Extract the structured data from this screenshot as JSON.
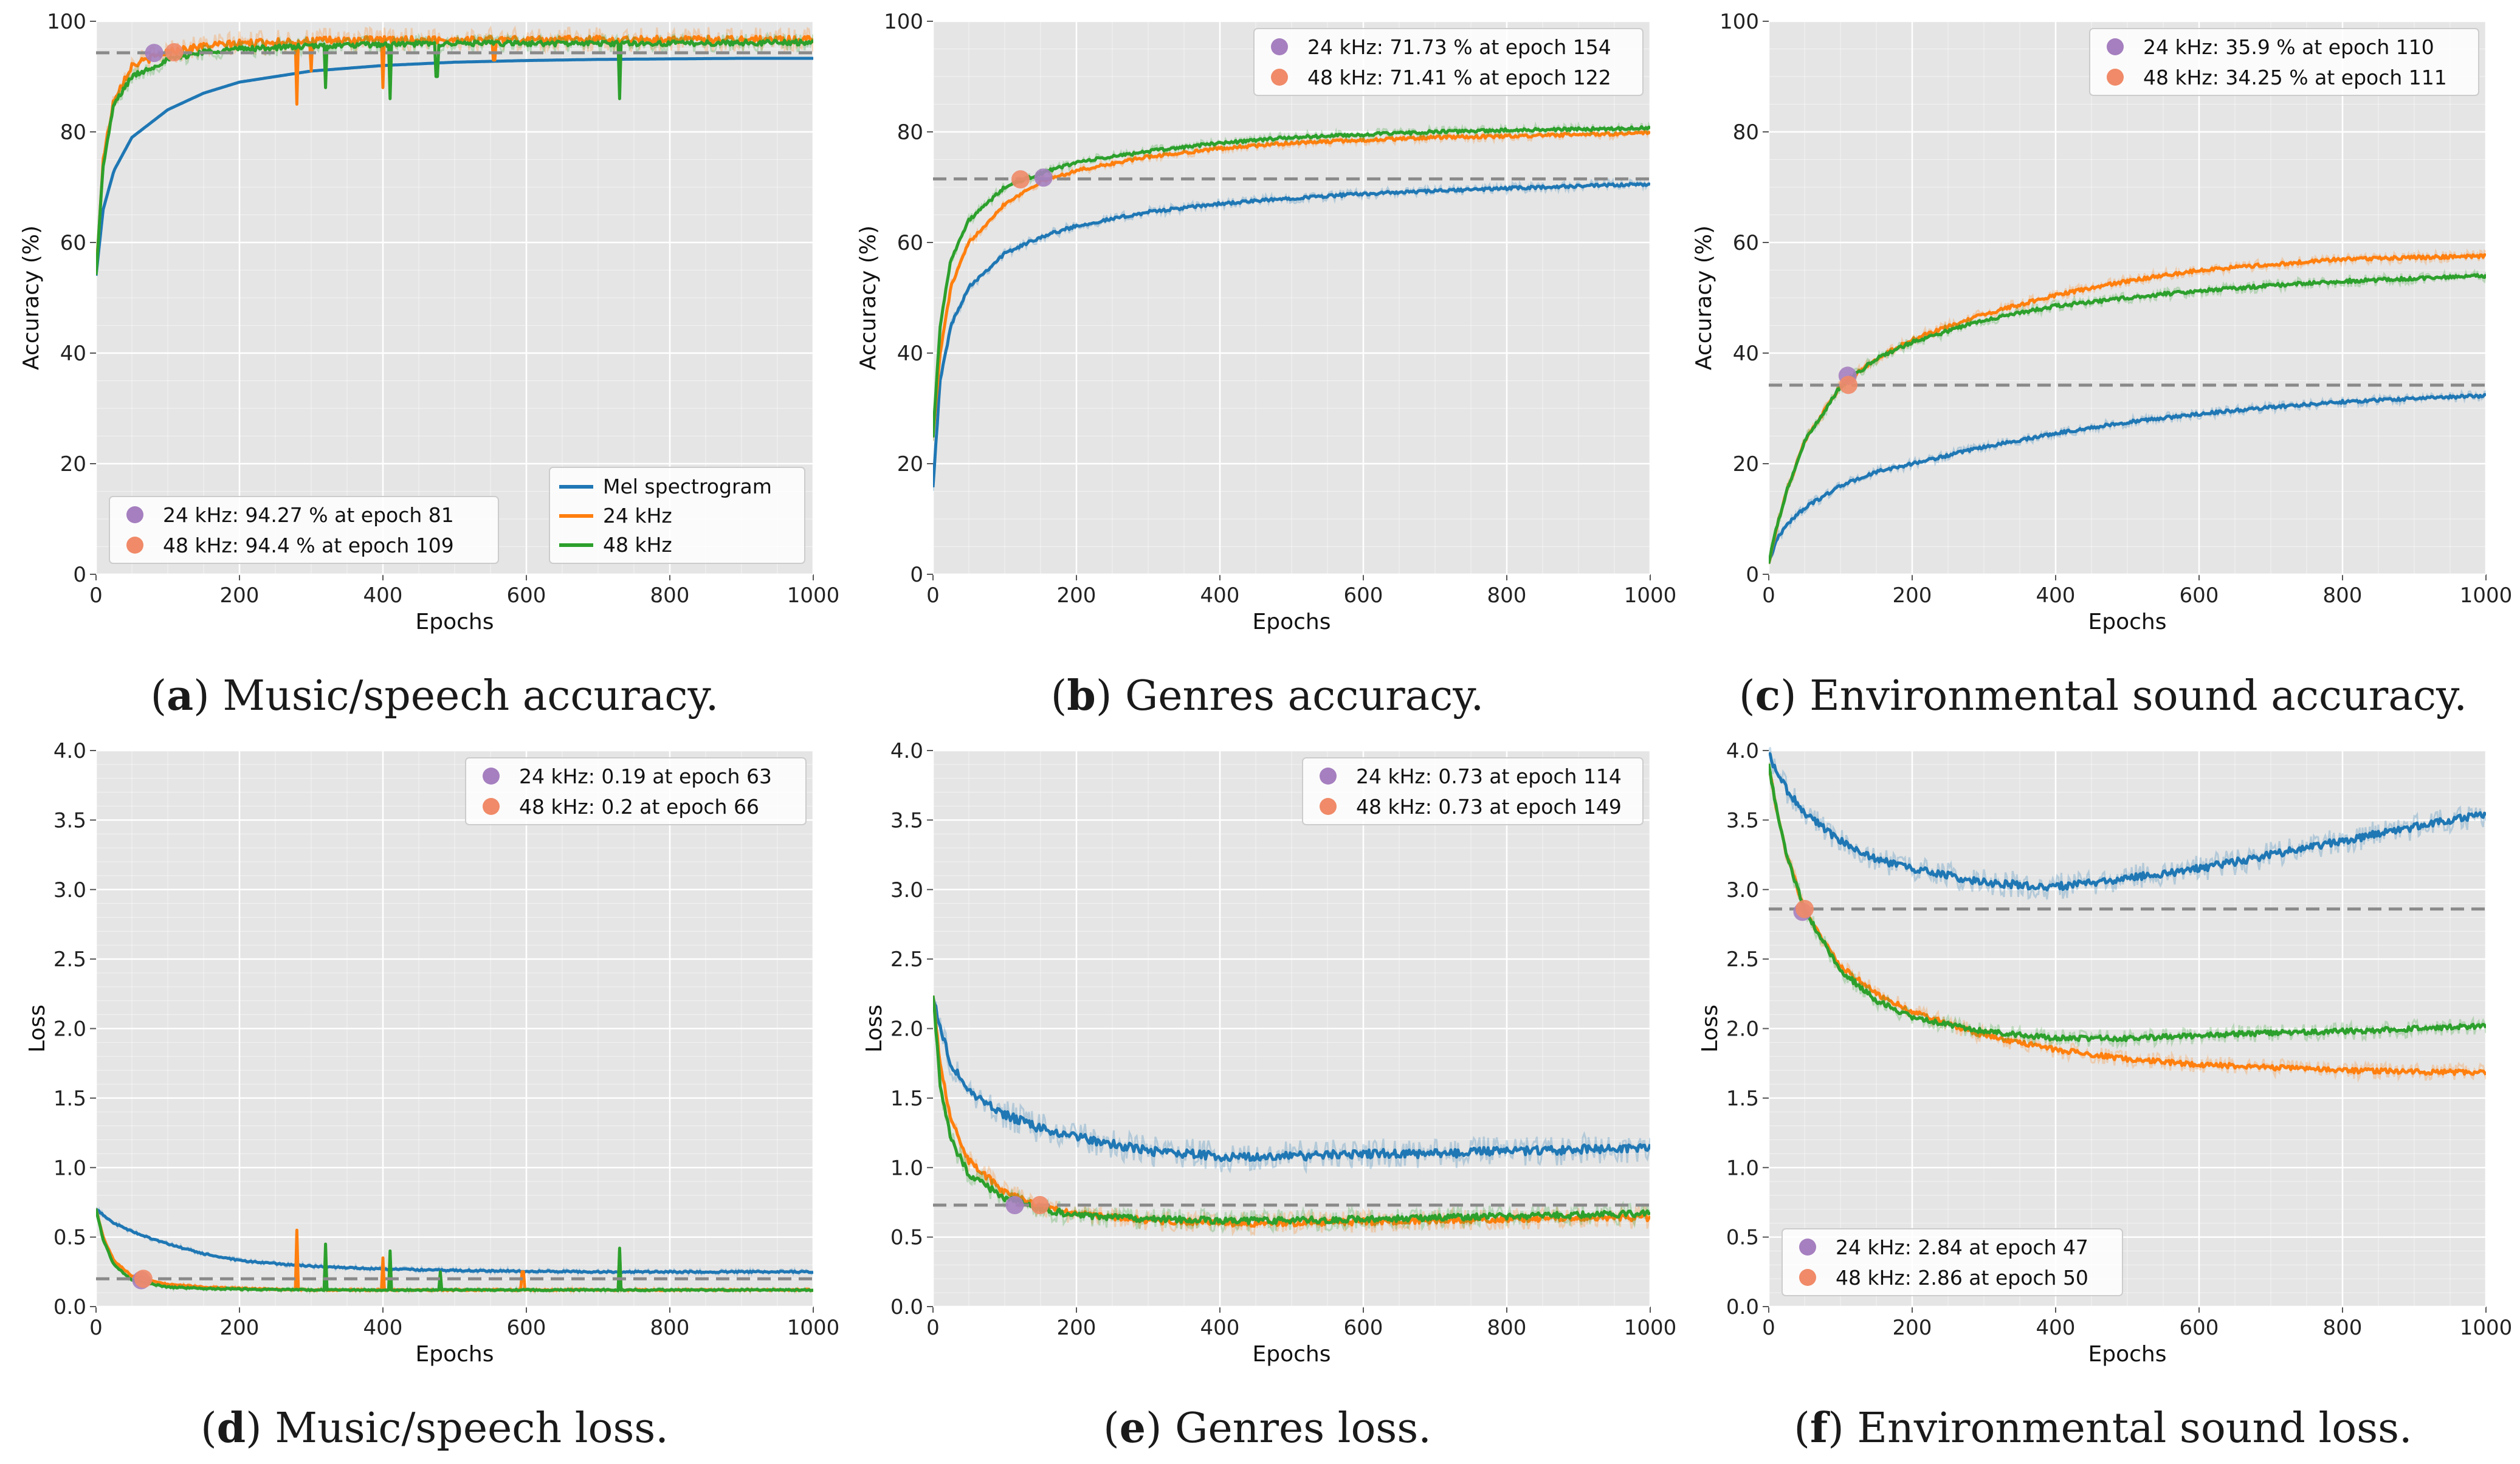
{
  "colors": {
    "mel": "#1f77b4",
    "k24": "#ff7f0e",
    "k48": "#2ca02c",
    "marker24": "#a57fbf",
    "marker48": "#f08a68",
    "marker_overlap": "#c85a5a",
    "background": "#e5e5e5",
    "grid": "#ffffff",
    "reference": "#8a8a8a"
  },
  "captions": [
    {
      "letter": "a",
      "text": "Music/speech accuracy."
    },
    {
      "letter": "b",
      "text": "Genres accuracy."
    },
    {
      "letter": "c",
      "text": "Environmental sound accuracy."
    },
    {
      "letter": "d",
      "text": "Music/speech loss."
    },
    {
      "letter": "e",
      "text": "Genres loss."
    },
    {
      "letter": "f",
      "text": "Environmental sound loss."
    }
  ],
  "chart_data": [
    {
      "id": "a",
      "type": "line",
      "metric": "accuracy",
      "xlabel": "Epochs",
      "ylabel": "Accuracy (%)",
      "xlim": [
        0,
        1000
      ],
      "ylim": [
        0,
        100
      ],
      "xticks": [
        0,
        200,
        400,
        600,
        800,
        1000
      ],
      "yticks": [
        0,
        20,
        40,
        60,
        80,
        100
      ],
      "grid": true,
      "reference_line": 94.3,
      "series_legend": {
        "position": "bottom-right",
        "items": [
          "Mel spectrogram",
          "24 kHz",
          "48 kHz"
        ]
      },
      "marker_legend": {
        "position": "bottom-left",
        "items": [
          "24 kHz: 94.27 % at epoch 81",
          "48 kHz: 94.4 % at epoch 109"
        ]
      },
      "markers": [
        {
          "x": 81,
          "y": 94.27
        },
        {
          "x": 109,
          "y": 94.4
        }
      ],
      "series": [
        {
          "name": "Mel spectrogram",
          "x": [
            0,
            10,
            25,
            50,
            100,
            150,
            200,
            300,
            400,
            500,
            600,
            700,
            800,
            900,
            1000
          ],
          "values": [
            54,
            66,
            73,
            79,
            84,
            87,
            89,
            91,
            92,
            92.6,
            92.9,
            93.1,
            93.2,
            93.3,
            93.3
          ]
        },
        {
          "name": "24 kHz",
          "x": [
            0,
            10,
            25,
            50,
            100,
            150,
            200,
            300,
            400,
            500,
            600,
            700,
            800,
            900,
            1000
          ],
          "values": [
            54,
            75,
            86,
            92,
            94.5,
            95.5,
            96,
            96.5,
            96.6,
            96.7,
            96.7,
            96.7,
            96.7,
            96.7,
            96.7
          ],
          "noise": 1.4,
          "spikes": [
            [
              280,
              85
            ],
            [
              300,
              91
            ],
            [
              400,
              88
            ],
            [
              555,
              93
            ],
            [
              730,
              88
            ]
          ]
        },
        {
          "name": "48 kHz",
          "x": [
            0,
            10,
            25,
            50,
            100,
            150,
            200,
            300,
            400,
            500,
            600,
            700,
            800,
            900,
            1000
          ],
          "values": [
            54,
            74,
            85,
            90,
            93,
            94.5,
            95,
            95.5,
            95.8,
            96,
            96,
            96,
            96,
            96.1,
            96.2
          ],
          "noise": 1.0,
          "spikes": [
            [
              320,
              88
            ],
            [
              410,
              86
            ],
            [
              475,
              90
            ],
            [
              730,
              86
            ]
          ]
        }
      ]
    },
    {
      "id": "b",
      "type": "line",
      "metric": "accuracy",
      "xlabel": "Epochs",
      "ylabel": "Accuracy (%)",
      "xlim": [
        0,
        1000
      ],
      "ylim": [
        0,
        100
      ],
      "xticks": [
        0,
        200,
        400,
        600,
        800,
        1000
      ],
      "yticks": [
        0,
        20,
        40,
        60,
        80,
        100
      ],
      "grid": true,
      "reference_line": 71.5,
      "marker_legend": {
        "position": "top-right",
        "items": [
          "24 kHz: 71.73 % at epoch 154",
          "48 kHz: 71.41 % at epoch 122"
        ]
      },
      "markers": [
        {
          "x": 154,
          "y": 71.73
        },
        {
          "x": 122,
          "y": 71.41
        }
      ],
      "series": [
        {
          "name": "Mel spectrogram",
          "x": [
            0,
            10,
            25,
            50,
            100,
            150,
            200,
            300,
            400,
            500,
            600,
            700,
            800,
            900,
            1000
          ],
          "values": [
            16,
            35,
            45,
            52,
            58,
            61,
            63,
            65.5,
            67,
            68,
            68.8,
            69.3,
            69.8,
            70.2,
            70.5
          ],
          "noise": 0.6
        },
        {
          "name": "24 kHz",
          "x": [
            0,
            10,
            25,
            50,
            100,
            150,
            200,
            300,
            400,
            500,
            600,
            700,
            800,
            900,
            1000
          ],
          "values": [
            25,
            40,
            52,
            60,
            67,
            71,
            73,
            75.5,
            77,
            78,
            78.5,
            79,
            79.2,
            79.5,
            79.8
          ],
          "noise": 0.6
        },
        {
          "name": "48 kHz",
          "x": [
            0,
            10,
            25,
            50,
            100,
            150,
            200,
            300,
            400,
            500,
            600,
            700,
            800,
            900,
            1000
          ],
          "values": [
            25,
            45,
            57,
            64,
            70,
            72.5,
            74.5,
            76.5,
            78,
            79,
            79.5,
            80,
            80.3,
            80.5,
            80.7
          ],
          "noise": 0.6
        }
      ]
    },
    {
      "id": "c",
      "type": "line",
      "metric": "accuracy",
      "xlabel": "Epochs",
      "ylabel": "Accuracy (%)",
      "xlim": [
        0,
        1000
      ],
      "ylim": [
        0,
        100
      ],
      "xticks": [
        0,
        200,
        400,
        600,
        800,
        1000
      ],
      "yticks": [
        0,
        20,
        40,
        60,
        80,
        100
      ],
      "grid": true,
      "reference_line": 34.2,
      "marker_legend": {
        "position": "top-right",
        "items": [
          "24 kHz: 35.9 % at epoch 110",
          "48 kHz: 34.25 % at epoch 111"
        ]
      },
      "markers": [
        {
          "x": 110,
          "y": 35.9
        },
        {
          "x": 111,
          "y": 34.25
        }
      ],
      "series": [
        {
          "name": "Mel spectrogram",
          "x": [
            0,
            10,
            25,
            50,
            100,
            150,
            200,
            300,
            400,
            500,
            600,
            700,
            800,
            900,
            1000
          ],
          "values": [
            2,
            6,
            9,
            12,
            16,
            18.5,
            20,
            23,
            25.5,
            27.5,
            29,
            30.2,
            31.2,
            31.8,
            32.3
          ],
          "noise": 0.6
        },
        {
          "name": "24 kHz",
          "x": [
            0,
            10,
            25,
            50,
            100,
            150,
            200,
            300,
            400,
            500,
            600,
            700,
            800,
            900,
            1000
          ],
          "values": [
            2,
            8,
            15,
            24,
            34,
            39,
            42.5,
            47,
            50.5,
            53,
            55,
            56,
            57,
            57.3,
            57.5
          ],
          "noise": 0.7
        },
        {
          "name": "48 kHz",
          "x": [
            0,
            10,
            25,
            50,
            100,
            150,
            200,
            300,
            400,
            500,
            600,
            700,
            800,
            900,
            1000
          ],
          "values": [
            2,
            8,
            15,
            24,
            34,
            39,
            42,
            46,
            48.5,
            50,
            51.3,
            52.2,
            53,
            53.5,
            54
          ],
          "noise": 0.7
        }
      ]
    },
    {
      "id": "d",
      "type": "line",
      "metric": "loss",
      "xlabel": "Epochs",
      "ylabel": "Loss",
      "xlim": [
        0,
        1000
      ],
      "ylim": [
        0,
        4
      ],
      "xticks": [
        0,
        200,
        400,
        600,
        800,
        1000
      ],
      "yticks": [
        0.0,
        0.5,
        1.0,
        1.5,
        2.0,
        2.5,
        3.0,
        3.5,
        4.0
      ],
      "grid": true,
      "reference_line": 0.2,
      "marker_legend": {
        "position": "top-right",
        "items": [
          "24 kHz: 0.19 at epoch 63",
          "48 kHz: 0.2 at epoch 66"
        ]
      },
      "markers": [
        {
          "x": 63,
          "y": 0.19
        },
        {
          "x": 66,
          "y": 0.2
        }
      ],
      "series": [
        {
          "name": "Mel spectrogram",
          "x": [
            0,
            10,
            25,
            50,
            100,
            150,
            200,
            300,
            400,
            500,
            600,
            700,
            800,
            900,
            1000
          ],
          "values": [
            0.7,
            0.66,
            0.6,
            0.54,
            0.45,
            0.38,
            0.33,
            0.29,
            0.27,
            0.26,
            0.255,
            0.25,
            0.25,
            0.25,
            0.25
          ],
          "noise": 0.012
        },
        {
          "name": "24 kHz",
          "x": [
            0,
            10,
            25,
            50,
            100,
            150,
            200,
            300,
            400,
            500,
            600,
            700,
            800,
            900,
            1000
          ],
          "values": [
            0.7,
            0.5,
            0.33,
            0.22,
            0.16,
            0.14,
            0.13,
            0.12,
            0.12,
            0.12,
            0.12,
            0.12,
            0.12,
            0.12,
            0.12
          ],
          "noise": 0.01,
          "spikes": [
            [
              280,
              0.55
            ],
            [
              400,
              0.35
            ],
            [
              595,
              0.25
            ],
            [
              730,
              0.4
            ]
          ]
        },
        {
          "name": "48 kHz",
          "x": [
            0,
            10,
            25,
            50,
            100,
            150,
            200,
            300,
            400,
            500,
            600,
            700,
            800,
            900,
            1000
          ],
          "values": [
            0.7,
            0.48,
            0.3,
            0.19,
            0.14,
            0.13,
            0.125,
            0.12,
            0.12,
            0.12,
            0.12,
            0.12,
            0.12,
            0.12,
            0.12
          ],
          "noise": 0.01,
          "spikes": [
            [
              320,
              0.45
            ],
            [
              410,
              0.4
            ],
            [
              480,
              0.25
            ],
            [
              730,
              0.42
            ]
          ]
        }
      ]
    },
    {
      "id": "e",
      "type": "line",
      "metric": "loss",
      "xlabel": "Epochs",
      "ylabel": "Loss",
      "xlim": [
        0,
        1000
      ],
      "ylim": [
        0,
        4
      ],
      "xticks": [
        0,
        200,
        400,
        600,
        800,
        1000
      ],
      "yticks": [
        0.0,
        0.5,
        1.0,
        1.5,
        2.0,
        2.5,
        3.0,
        3.5,
        4.0
      ],
      "grid": true,
      "reference_line": 0.73,
      "marker_legend": {
        "position": "top-right",
        "items": [
          "24 kHz: 0.73 at epoch 114",
          "48 kHz: 0.73 at epoch 149"
        ]
      },
      "markers": [
        {
          "x": 114,
          "y": 0.73
        },
        {
          "x": 149,
          "y": 0.73
        }
      ],
      "series": [
        {
          "name": "Mel spectrogram",
          "x": [
            0,
            10,
            25,
            50,
            100,
            150,
            200,
            300,
            400,
            500,
            600,
            700,
            800,
            900,
            1000
          ],
          "values": [
            2.25,
            2.0,
            1.75,
            1.55,
            1.38,
            1.28,
            1.22,
            1.12,
            1.08,
            1.08,
            1.1,
            1.1,
            1.12,
            1.13,
            1.15
          ],
          "noise": 0.07
        },
        {
          "name": "24 kHz",
          "x": [
            0,
            10,
            25,
            50,
            100,
            150,
            200,
            300,
            400,
            500,
            600,
            700,
            800,
            900,
            1000
          ],
          "values": [
            2.25,
            1.75,
            1.35,
            1.05,
            0.82,
            0.72,
            0.67,
            0.62,
            0.6,
            0.6,
            0.61,
            0.62,
            0.63,
            0.64,
            0.64
          ],
          "noise": 0.05
        },
        {
          "name": "48 kHz",
          "x": [
            0,
            10,
            25,
            50,
            100,
            150,
            200,
            300,
            400,
            500,
            600,
            700,
            800,
            900,
            1000
          ],
          "values": [
            2.25,
            1.6,
            1.2,
            0.95,
            0.78,
            0.7,
            0.66,
            0.63,
            0.62,
            0.62,
            0.63,
            0.64,
            0.65,
            0.66,
            0.67
          ],
          "noise": 0.05
        }
      ]
    },
    {
      "id": "f",
      "type": "line",
      "metric": "loss",
      "xlabel": "Epochs",
      "ylabel": "Loss",
      "xlim": [
        0,
        1000
      ],
      "ylim": [
        0,
        4
      ],
      "xticks": [
        0,
        200,
        400,
        600,
        800,
        1000
      ],
      "yticks": [
        0.0,
        0.5,
        1.0,
        1.5,
        2.0,
        2.5,
        3.0,
        3.5,
        4.0
      ],
      "grid": true,
      "reference_line": 2.86,
      "marker_legend": {
        "position": "bottom-left",
        "items": [
          "24 kHz: 2.84 at epoch 47",
          "48 kHz: 2.86 at epoch 50"
        ]
      },
      "markers": [
        {
          "x": 47,
          "y": 2.84
        },
        {
          "x": 50,
          "y": 2.86
        }
      ],
      "series": [
        {
          "name": "Mel spectrogram",
          "x": [
            0,
            10,
            25,
            50,
            100,
            150,
            200,
            300,
            400,
            500,
            600,
            700,
            800,
            900,
            1000
          ],
          "values": [
            3.98,
            3.85,
            3.72,
            3.55,
            3.35,
            3.22,
            3.15,
            3.05,
            3.02,
            3.08,
            3.15,
            3.25,
            3.35,
            3.45,
            3.55
          ],
          "noise": 0.06
        },
        {
          "name": "24 kHz",
          "x": [
            0,
            10,
            25,
            50,
            100,
            150,
            200,
            300,
            400,
            500,
            600,
            700,
            800,
            900,
            1000
          ],
          "values": [
            3.9,
            3.6,
            3.25,
            2.85,
            2.45,
            2.25,
            2.12,
            1.95,
            1.85,
            1.78,
            1.74,
            1.72,
            1.7,
            1.69,
            1.68
          ],
          "noise": 0.04
        },
        {
          "name": "48 kHz",
          "x": [
            0,
            10,
            25,
            50,
            100,
            150,
            200,
            300,
            400,
            500,
            600,
            700,
            800,
            900,
            1000
          ],
          "values": [
            3.9,
            3.6,
            3.25,
            2.85,
            2.42,
            2.2,
            2.08,
            1.98,
            1.93,
            1.93,
            1.95,
            1.97,
            1.98,
            2.0,
            2.02
          ],
          "noise": 0.04
        }
      ]
    }
  ]
}
